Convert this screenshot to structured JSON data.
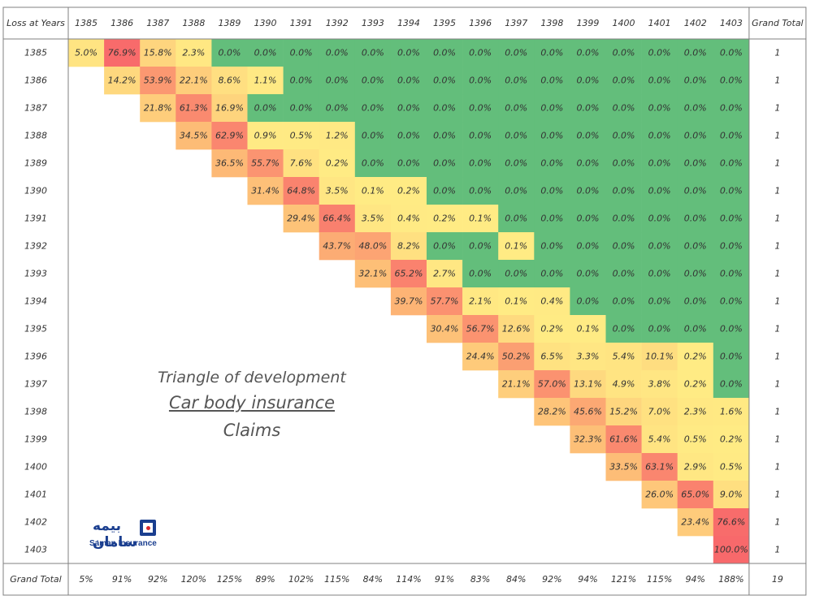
{
  "chart_data": {
    "type": "heatmap",
    "corner_label": "Loss at Years",
    "columns": [
      "1385",
      "1386",
      "1387",
      "1388",
      "1389",
      "1390",
      "1391",
      "1392",
      "1393",
      "1394",
      "1395",
      "1396",
      "1397",
      "1398",
      "1399",
      "1400",
      "1401",
      "1402",
      "1403"
    ],
    "rows": [
      "1385",
      "1386",
      "1387",
      "1388",
      "1389",
      "1390",
      "1391",
      "1392",
      "1393",
      "1394",
      "1395",
      "1396",
      "1397",
      "1398",
      "1399",
      "1400",
      "1401",
      "1402",
      "1403"
    ],
    "total_column_label": "Grand Total",
    "total_row_label": "Grand Total",
    "cells": [
      [
        "5.0%",
        "76.9%",
        "15.8%",
        "2.3%",
        "0.0%",
        "0.0%",
        "0.0%",
        "0.0%",
        "0.0%",
        "0.0%",
        "0.0%",
        "0.0%",
        "0.0%",
        "0.0%",
        "0.0%",
        "0.0%",
        "0.0%",
        "0.0%",
        "0.0%"
      ],
      [
        "",
        "14.2%",
        "53.9%",
        "22.1%",
        "8.6%",
        "1.1%",
        "0.0%",
        "0.0%",
        "0.0%",
        "0.0%",
        "0.0%",
        "0.0%",
        "0.0%",
        "0.0%",
        "0.0%",
        "0.0%",
        "0.0%",
        "0.0%",
        "0.0%"
      ],
      [
        "",
        "",
        "21.8%",
        "61.3%",
        "16.9%",
        "0.0%",
        "0.0%",
        "0.0%",
        "0.0%",
        "0.0%",
        "0.0%",
        "0.0%",
        "0.0%",
        "0.0%",
        "0.0%",
        "0.0%",
        "0.0%",
        "0.0%",
        "0.0%"
      ],
      [
        "",
        "",
        "",
        "34.5%",
        "62.9%",
        "0.9%",
        "0.5%",
        "1.2%",
        "0.0%",
        "0.0%",
        "0.0%",
        "0.0%",
        "0.0%",
        "0.0%",
        "0.0%",
        "0.0%",
        "0.0%",
        "0.0%",
        "0.0%"
      ],
      [
        "",
        "",
        "",
        "",
        "36.5%",
        "55.7%",
        "7.6%",
        "0.2%",
        "0.0%",
        "0.0%",
        "0.0%",
        "0.0%",
        "0.0%",
        "0.0%",
        "0.0%",
        "0.0%",
        "0.0%",
        "0.0%",
        "0.0%"
      ],
      [
        "",
        "",
        "",
        "",
        "",
        "31.4%",
        "64.8%",
        "3.5%",
        "0.1%",
        "0.2%",
        "0.0%",
        "0.0%",
        "0.0%",
        "0.0%",
        "0.0%",
        "0.0%",
        "0.0%",
        "0.0%",
        "0.0%"
      ],
      [
        "",
        "",
        "",
        "",
        "",
        "",
        "29.4%",
        "66.4%",
        "3.5%",
        "0.4%",
        "0.2%",
        "0.1%",
        "0.0%",
        "0.0%",
        "0.0%",
        "0.0%",
        "0.0%",
        "0.0%",
        "0.0%"
      ],
      [
        "",
        "",
        "",
        "",
        "",
        "",
        "",
        "43.7%",
        "48.0%",
        "8.2%",
        "0.0%",
        "0.0%",
        "0.1%",
        "0.0%",
        "0.0%",
        "0.0%",
        "0.0%",
        "0.0%",
        "0.0%"
      ],
      [
        "",
        "",
        "",
        "",
        "",
        "",
        "",
        "",
        "32.1%",
        "65.2%",
        "2.7%",
        "0.0%",
        "0.0%",
        "0.0%",
        "0.0%",
        "0.0%",
        "0.0%",
        "0.0%",
        "0.0%"
      ],
      [
        "",
        "",
        "",
        "",
        "",
        "",
        "",
        "",
        "",
        "39.7%",
        "57.7%",
        "2.1%",
        "0.1%",
        "0.4%",
        "0.0%",
        "0.0%",
        "0.0%",
        "0.0%",
        "0.0%"
      ],
      [
        "",
        "",
        "",
        "",
        "",
        "",
        "",
        "",
        "",
        "",
        "30.4%",
        "56.7%",
        "12.6%",
        "0.2%",
        "0.1%",
        "0.0%",
        "0.0%",
        "0.0%",
        "0.0%"
      ],
      [
        "",
        "",
        "",
        "",
        "",
        "",
        "",
        "",
        "",
        "",
        "",
        "24.4%",
        "50.2%",
        "6.5%",
        "3.3%",
        "5.4%",
        "10.1%",
        "0.2%",
        "0.0%"
      ],
      [
        "",
        "",
        "",
        "",
        "",
        "",
        "",
        "",
        "",
        "",
        "",
        "",
        "21.1%",
        "57.0%",
        "13.1%",
        "4.9%",
        "3.8%",
        "0.2%",
        "0.0%"
      ],
      [
        "",
        "",
        "",
        "",
        "",
        "",
        "",
        "",
        "",
        "",
        "",
        "",
        "",
        "28.2%",
        "45.6%",
        "15.2%",
        "7.0%",
        "2.3%",
        "1.6%"
      ],
      [
        "",
        "",
        "",
        "",
        "",
        "",
        "",
        "",
        "",
        "",
        "",
        "",
        "",
        "",
        "32.3%",
        "61.6%",
        "5.4%",
        "0.5%",
        "0.2%"
      ],
      [
        "",
        "",
        "",
        "",
        "",
        "",
        "",
        "",
        "",
        "",
        "",
        "",
        "",
        "",
        "",
        "33.5%",
        "63.1%",
        "2.9%",
        "0.5%"
      ],
      [
        "",
        "",
        "",
        "",
        "",
        "",
        "",
        "",
        "",
        "",
        "",
        "",
        "",
        "",
        "",
        "",
        "26.0%",
        "65.0%",
        "9.0%"
      ],
      [
        "",
        "",
        "",
        "",
        "",
        "",
        "",
        "",
        "",
        "",
        "",
        "",
        "",
        "",
        "",
        "",
        "",
        "23.4%",
        "76.6%"
      ],
      [
        "",
        "",
        "",
        "",
        "",
        "",
        "",
        "",
        "",
        "",
        "",
        "",
        "",
        "",
        "",
        "",
        "",
        "",
        "100.0%"
      ]
    ],
    "row_totals": [
      "1",
      "1",
      "1",
      "1",
      "1",
      "1",
      "1",
      "1",
      "1",
      "1",
      "1",
      "1",
      "1",
      "1",
      "1",
      "1",
      "1",
      "1",
      "1"
    ],
    "column_totals": [
      "5%",
      "91%",
      "92%",
      "120%",
      "125%",
      "89%",
      "102%",
      "115%",
      "84%",
      "114%",
      "91%",
      "83%",
      "84%",
      "92%",
      "94%",
      "121%",
      "115%",
      "94%",
      "188%"
    ],
    "grand_total": "19",
    "colors": {
      "zero": "#63be7b",
      "low": "#ffeb84",
      "mid": "#fdb775",
      "high": "#f8696b",
      "border": "#808080",
      "text": "#333333"
    }
  },
  "annotation": {
    "line1": "Triangle of development",
    "line2": "Car body insurance",
    "line3": "Claims"
  },
  "logo": {
    "persian_text": "بیمه سامان",
    "english_text": "Saman Insurance",
    "colors": {
      "primary": "#1a3e8f",
      "accent": "#d9262b"
    }
  }
}
